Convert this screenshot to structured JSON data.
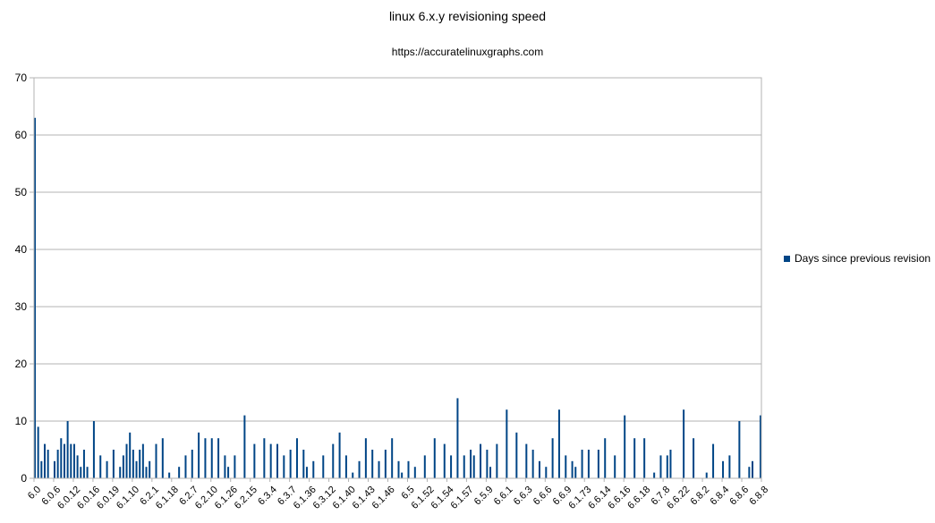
{
  "chart_data": {
    "type": "bar",
    "title": "linux 6.x.y revisioning speed",
    "subtitle": "https://accuratelinuxgraphs.com",
    "xlabel": "",
    "ylabel": "",
    "ylim": [
      0,
      70
    ],
    "yticks": [
      0,
      10,
      20,
      30,
      40,
      50,
      60,
      70
    ],
    "grid": true,
    "legend_position": "right",
    "color": "#004586",
    "series": [
      {
        "name": "Days since previous revision",
        "values": [
          63,
          9,
          3,
          6,
          5,
          0,
          3,
          5,
          7,
          6,
          10,
          6,
          6,
          4,
          2,
          5,
          2,
          0,
          10,
          0,
          4,
          0,
          3,
          0,
          5,
          0,
          2,
          4,
          6,
          8,
          5,
          3,
          5,
          6,
          2,
          3,
          0,
          6,
          0,
          7,
          0,
          1,
          0,
          0,
          2,
          0,
          4,
          0,
          5,
          0,
          8,
          0,
          7,
          0,
          7,
          0,
          7,
          0,
          4,
          2,
          0,
          4,
          0,
          0,
          11,
          0,
          0,
          6,
          0,
          0,
          7,
          0,
          6,
          0,
          6,
          0,
          4,
          0,
          5,
          0,
          7,
          0,
          5,
          2,
          0,
          3,
          0,
          0,
          4,
          0,
          0,
          6,
          0,
          8,
          0,
          4,
          0,
          1,
          0,
          3,
          0,
          7,
          0,
          5,
          0,
          3,
          0,
          5,
          0,
          7,
          0,
          3,
          1,
          0,
          3,
          0,
          2,
          0,
          0,
          4,
          0,
          0,
          7,
          0,
          0,
          6,
          0,
          4,
          0,
          14,
          0,
          4,
          0,
          5,
          4,
          0,
          6,
          0,
          5,
          2,
          0,
          6,
          0,
          0,
          12,
          0,
          0,
          8,
          0,
          0,
          6,
          0,
          5,
          0,
          3,
          0,
          2,
          0,
          7,
          0,
          12,
          0,
          4,
          0,
          3,
          2,
          0,
          5,
          0,
          5,
          0,
          0,
          5,
          0,
          7,
          0,
          0,
          4,
          0,
          0,
          11,
          0,
          0,
          7,
          0,
          0,
          7,
          0,
          0,
          1,
          0,
          4,
          0,
          4,
          5,
          0,
          0,
          0,
          12,
          0,
          0,
          7,
          0,
          0,
          0,
          1,
          0,
          6,
          0,
          0,
          3,
          0,
          4,
          0,
          0,
          10,
          0,
          0,
          2,
          3,
          0,
          0,
          11
        ]
      }
    ],
    "tick_labels": [
      "6.0",
      "6.0.6",
      "6.0.12",
      "6.0.16",
      "6.0.19",
      "6.1.10",
      "6.2.1",
      "6.1.18",
      "6.2.7",
      "6.2.10",
      "6.1.26",
      "6.2.15",
      "6.3.4",
      "6.3.7",
      "6.1.36",
      "6.3.12",
      "6.1.40",
      "6.1.43",
      "6.1.46",
      "6.5",
      "6.1.52",
      "6.1.54",
      "6.1.57",
      "6.5.9",
      "6.6.1",
      "6.6.3",
      "6.6.6",
      "6.6.9",
      "6.1.73",
      "6.6.14",
      "6.6.16",
      "6.6.18",
      "6.7.8",
      "6.6.22",
      "6.8.2",
      "6.8.4",
      "6.8.6",
      "6.8.8"
    ],
    "tick_label_step": 6
  }
}
